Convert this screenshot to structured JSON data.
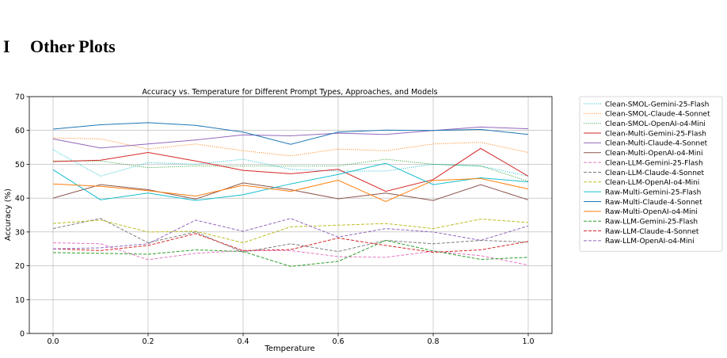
{
  "section": {
    "number": "I",
    "title": "Other Plots"
  },
  "chart_data": {
    "type": "line",
    "title": "Accuracy vs. Temperature for Different Prompt Types, Approaches, and Models",
    "xlabel": "Temperature",
    "ylabel": "Accuracy (%)",
    "xlim": [
      0,
      1
    ],
    "ylim": [
      0,
      70
    ],
    "xticks": [
      "0.0",
      "0.2",
      "0.4",
      "0.6",
      "0.8",
      "1.0"
    ],
    "yticks": [
      "0",
      "10",
      "20",
      "30",
      "40",
      "50",
      "60",
      "70"
    ],
    "grid": true,
    "legend_position": "outside-right",
    "x": [
      0.0,
      0.1,
      0.2,
      0.3,
      0.4,
      0.5,
      0.6,
      0.7,
      0.8,
      0.9,
      1.0
    ],
    "series": [
      {
        "name": "Clean-SMOL-Gemini-25-Flash",
        "color": "#17becf",
        "style": "dotted",
        "values": [
          54.3,
          46.5,
          50.5,
          50.0,
          51.5,
          48.5,
          48.0,
          48.0,
          50.0,
          49.5,
          46.5
        ]
      },
      {
        "name": "Clean-SMOL-Claude-4-Sonnet",
        "color": "#ff7f0e",
        "style": "dotted",
        "values": [
          57.8,
          57.5,
          54.5,
          56.0,
          54.0,
          52.5,
          54.5,
          54.0,
          56.0,
          56.5,
          53.5
        ]
      },
      {
        "name": "Clean-SMOL-OpenAI-o4-Mini",
        "color": "#2ca02c",
        "style": "dotted",
        "values": [
          51.0,
          51.0,
          49.0,
          49.5,
          49.5,
          49.5,
          49.5,
          51.5,
          50.0,
          49.5,
          45.0
        ]
      },
      {
        "name": "Clean-Multi-Gemini-25-Flash",
        "color": "#d62728",
        "style": "solid",
        "values": [
          50.8,
          51.2,
          53.5,
          51.0,
          48.2,
          47.2,
          48.5,
          42.0,
          45.5,
          54.7,
          46.5
        ]
      },
      {
        "name": "Clean-Multi-Claude-4-Sonnet",
        "color": "#9467bd",
        "style": "solid",
        "values": [
          57.5,
          54.8,
          56.0,
          57.2,
          58.7,
          58.4,
          59.2,
          58.8,
          60.0,
          61.0,
          60.5
        ]
      },
      {
        "name": "Clean-Multi-OpenAI-o4-Mini",
        "color": "#8c564b",
        "style": "solid",
        "values": [
          40.0,
          44.0,
          42.5,
          39.7,
          44.5,
          42.5,
          39.8,
          41.5,
          39.3,
          44.0,
          39.5
        ]
      },
      {
        "name": "Clean-LLM-Gemini-25-Flash",
        "color": "#e377c2",
        "style": "dashed",
        "values": [
          26.8,
          26.5,
          21.8,
          23.7,
          24.5,
          24.5,
          22.7,
          22.5,
          24.3,
          23.0,
          20.2
        ]
      },
      {
        "name": "Clean-LLM-Claude-4-Sonnet",
        "color": "#7f7f7f",
        "style": "dashed",
        "values": [
          31.0,
          34.0,
          26.8,
          30.0,
          24.0,
          26.5,
          24.2,
          27.5,
          26.5,
          27.5,
          27.0
        ]
      },
      {
        "name": "Clean-LLM-OpenAI-o4-Mini",
        "color": "#bcbd22",
        "style": "dashed",
        "values": [
          32.5,
          33.5,
          30.0,
          30.2,
          26.8,
          31.5,
          32.0,
          32.5,
          31.0,
          33.8,
          32.8
        ]
      },
      {
        "name": "Raw-Multi-Gemini-25-Flash",
        "color": "#17becf",
        "style": "solid",
        "values": [
          48.4,
          39.5,
          41.5,
          39.3,
          41.0,
          44.2,
          47.0,
          50.3,
          44.0,
          46.0,
          44.8
        ]
      },
      {
        "name": "Raw-Multi-Claude-4-Sonnet",
        "color": "#1f77b4",
        "style": "solid",
        "values": [
          60.4,
          61.7,
          62.3,
          61.5,
          59.5,
          55.9,
          59.5,
          60.1,
          60.0,
          60.3,
          58.8
        ]
      },
      {
        "name": "Raw-Multi-OpenAI-o4-Mini",
        "color": "#ff7f0e",
        "style": "solid",
        "values": [
          44.2,
          43.5,
          42.2,
          40.6,
          43.8,
          42.0,
          45.3,
          39.0,
          45.2,
          45.8,
          42.7
        ]
      },
      {
        "name": "Raw-LLM-Gemini-25-Flash",
        "color": "#2ca02c",
        "style": "dashed",
        "values": [
          23.9,
          23.7,
          23.4,
          24.7,
          24.2,
          19.8,
          21.3,
          27.5,
          24.4,
          21.9,
          22.5
        ]
      },
      {
        "name": "Raw-LLM-Claude-4-Sonnet",
        "color": "#d62728",
        "style": "dashed",
        "values": [
          25.0,
          24.5,
          26.0,
          29.5,
          24.5,
          24.8,
          28.2,
          26.0,
          24.0,
          24.7,
          27.2
        ]
      },
      {
        "name": "Raw-LLM-OpenAI-o4-Mini",
        "color": "#9467bd",
        "style": "dashed",
        "values": [
          25.0,
          25.3,
          26.5,
          33.5,
          30.2,
          34.0,
          28.5,
          31.0,
          30.0,
          27.5,
          31.8
        ]
      }
    ]
  }
}
